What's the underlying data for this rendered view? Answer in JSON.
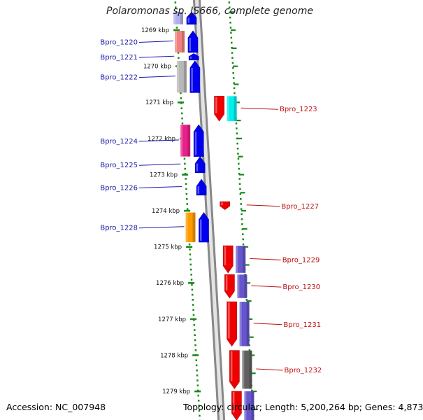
{
  "title": "Polaromonas sp. JS666, complete genome",
  "accession_text": "Accession: NC_007948",
  "topology_text": "Topology: circular; Length: 5,200,264 bp; Genes: 4,873",
  "ruler": {
    "unit": "kbp",
    "ticks": [
      {
        "value": 1269,
        "label": "1269 kbp"
      },
      {
        "value": 1270,
        "label": "1270 kbp"
      },
      {
        "value": 1271,
        "label": "1271 kbp"
      },
      {
        "value": 1272,
        "label": "1272 kbp"
      },
      {
        "value": 1273,
        "label": "1273 kbp"
      },
      {
        "value": 1274,
        "label": "1274 kbp"
      },
      {
        "value": 1275,
        "label": "1275 kbp"
      },
      {
        "value": 1276,
        "label": "1276 kbp"
      },
      {
        "value": 1277,
        "label": "1277 kbp"
      },
      {
        "value": 1278,
        "label": "1278 kbp"
      },
      {
        "value": 1279,
        "label": "1279 kbp"
      }
    ]
  },
  "colors": {
    "label_blue": "#1a1aa8",
    "label_red": "#c01010",
    "backbone": "#888888",
    "tick_green": "#1a8a1a"
  },
  "genes": [
    {
      "id": "Bpro_1219",
      "label": "",
      "strand": "-",
      "start_kbp": 1268.5,
      "end_kbp": 1268.84,
      "cds_color": "#0000ee",
      "cog_color": "#b0b0ee"
    },
    {
      "id": "Bpro_1220",
      "label": "Bpro_1220",
      "strand": "-",
      "start_kbp": 1269.02,
      "end_kbp": 1269.62,
      "cds_color": "#0000ee",
      "cog_color": "#f08080"
    },
    {
      "id": "Bpro_1221",
      "label": "Bpro_1221",
      "strand": "-",
      "start_kbp": 1269.65,
      "end_kbp": 1269.83,
      "cds_color": "#0000ee",
      "cog_color": ""
    },
    {
      "id": "Bpro_1222",
      "label": "Bpro_1222",
      "strand": "-",
      "start_kbp": 1269.85,
      "end_kbp": 1270.73,
      "cds_color": "#0000ee",
      "cog_color": "#b8b8b8"
    },
    {
      "id": "Bpro_1223",
      "label": "Bpro_1223",
      "strand": "+",
      "start_kbp": 1270.83,
      "end_kbp": 1271.52,
      "cds_color": "#ee0000",
      "cog_color": "#00eeee"
    },
    {
      "id": "Bpro_1224",
      "label": "Bpro_1224",
      "strand": "-",
      "start_kbp": 1271.62,
      "end_kbp": 1272.5,
      "cds_color": "#0000ee",
      "cog_color": "#e8208a"
    },
    {
      "id": "Bpro_1225",
      "label": "Bpro_1225",
      "strand": "-",
      "start_kbp": 1272.5,
      "end_kbp": 1272.95,
      "cds_color": "#0000ee",
      "cog_color": ""
    },
    {
      "id": "Bpro_1226",
      "label": "Bpro_1226",
      "strand": "-",
      "start_kbp": 1273.13,
      "end_kbp": 1273.57,
      "cds_color": "#0000ee",
      "cog_color": ""
    },
    {
      "id": "Bpro_1227",
      "label": "Bpro_1227",
      "strand": "+",
      "start_kbp": 1273.75,
      "end_kbp": 1273.97,
      "cds_color": "#ee0000",
      "cog_color": ""
    },
    {
      "id": "Bpro_1228",
      "label": "Bpro_1228",
      "strand": "-",
      "start_kbp": 1274.05,
      "end_kbp": 1274.87,
      "cds_color": "#0000ee",
      "cog_color": "#ff9a00"
    },
    {
      "id": "Bpro_1229",
      "label": "Bpro_1229",
      "strand": "+",
      "start_kbp": 1274.97,
      "end_kbp": 1275.72,
      "cds_color": "#ee0000",
      "cog_color": "#6655cc"
    },
    {
      "id": "Bpro_1230",
      "label": "Bpro_1230",
      "strand": "+",
      "start_kbp": 1275.77,
      "end_kbp": 1276.42,
      "cds_color": "#ee0000",
      "cog_color": "#6655cc"
    },
    {
      "id": "Bpro_1231",
      "label": "Bpro_1231",
      "strand": "+",
      "start_kbp": 1276.52,
      "end_kbp": 1277.75,
      "cds_color": "#ee0000",
      "cog_color": "#6655cc"
    },
    {
      "id": "Bpro_1232",
      "label": "Bpro_1232",
      "strand": "+",
      "start_kbp": 1277.87,
      "end_kbp": 1278.93,
      "cds_color": "#ee0000",
      "cog_color": "#606060"
    },
    {
      "id": "Bpro_1233",
      "label": "",
      "strand": "+",
      "start_kbp": 1279.0,
      "end_kbp": 1279.8,
      "cds_color": "#ee0000",
      "cog_color": "#6655cc"
    }
  ]
}
